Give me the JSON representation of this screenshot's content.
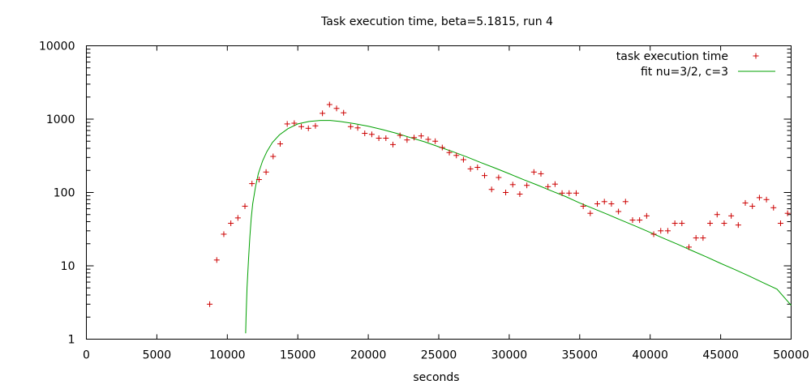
{
  "chart_data": {
    "type": "scatter",
    "title": "Task execution time, beta=5.1815, run 4",
    "xlabel": "seconds",
    "ylabel": "",
    "xlim": [
      0,
      50000
    ],
    "ylim": [
      1,
      10000
    ],
    "yscale": "log",
    "grid": false,
    "legend_position": "top-right",
    "x_ticks": [
      {
        "value": 0,
        "label": "0"
      },
      {
        "value": 5000,
        "label": "5000"
      },
      {
        "value": 10000,
        "label": "10000"
      },
      {
        "value": 15000,
        "label": "15000"
      },
      {
        "value": 20000,
        "label": "20000"
      },
      {
        "value": 25000,
        "label": "25000"
      },
      {
        "value": 30000,
        "label": "30000"
      },
      {
        "value": 35000,
        "label": "35000"
      },
      {
        "value": 40000,
        "label": "40000"
      },
      {
        "value": 45000,
        "label": "45000"
      },
      {
        "value": 50000,
        "label": "50000"
      }
    ],
    "y_ticks": [
      {
        "value": 1,
        "label": "1"
      },
      {
        "value": 10,
        "label": "10"
      },
      {
        "value": 100,
        "label": "100"
      },
      {
        "value": 1000,
        "label": "1000"
      },
      {
        "value": 10000,
        "label": "10000"
      }
    ],
    "series": [
      {
        "name": "task execution time",
        "kind": "points",
        "marker": "+",
        "color": "#cc0000",
        "x": [
          8750,
          9250,
          9750,
          10250,
          10750,
          11250,
          11750,
          12250,
          12750,
          13250,
          13750,
          14250,
          14750,
          15250,
          15750,
          16250,
          16750,
          17250,
          17750,
          18250,
          18750,
          19250,
          19750,
          20250,
          20750,
          21250,
          21750,
          22250,
          22750,
          23250,
          23750,
          24250,
          24750,
          25250,
          25750,
          26250,
          26750,
          27250,
          27750,
          28250,
          28750,
          29250,
          29750,
          30250,
          30750,
          31250,
          31750,
          32250,
          32750,
          33250,
          33750,
          34250,
          34750,
          35250,
          35750,
          36250,
          36750,
          37250,
          37750,
          38250,
          38750,
          39250,
          39750,
          40250,
          40750,
          41250,
          41750,
          42250,
          42750,
          43250,
          43750,
          44250,
          44750,
          45250,
          45750,
          46250,
          46750,
          47250,
          47750,
          48250,
          48750,
          49250,
          49750
        ],
        "y": [
          3,
          12,
          27,
          38,
          45,
          65,
          132,
          150,
          190,
          310,
          460,
          860,
          880,
          790,
          750,
          810,
          1200,
          1580,
          1400,
          1220,
          790,
          760,
          640,
          620,
          550,
          550,
          450,
          600,
          520,
          560,
          590,
          530,
          500,
          410,
          350,
          320,
          280,
          210,
          220,
          170,
          110,
          160,
          100,
          128,
          95,
          125,
          190,
          180,
          120,
          130,
          98,
          98,
          98,
          65,
          52,
          70,
          75,
          70,
          55,
          75,
          42,
          42,
          48,
          27,
          30,
          30,
          38,
          38,
          18,
          24,
          24,
          38,
          50,
          38,
          48,
          36,
          72,
          65,
          85,
          80,
          62,
          38,
          52
        ]
      },
      {
        "name": "fit nu=3/2, c=3",
        "kind": "line",
        "color": "#00a000",
        "x": [
          11300,
          11330,
          11400,
          11500,
          11600,
          11700,
          11800,
          12000,
          12200,
          12500,
          12800,
          13200,
          13700,
          14300,
          15000,
          15800,
          16600,
          17300,
          18000,
          19000,
          20000,
          21000,
          22000,
          23000,
          24000,
          25000,
          26000,
          27000,
          28000,
          29000,
          30000,
          31000,
          32000,
          33000,
          34000,
          35000,
          36000,
          37000,
          38000,
          39000,
          40000,
          41000,
          42000,
          43000,
          44000,
          45000,
          46000,
          47000,
          48000,
          49000,
          50000
        ],
        "y": [
          1.2,
          2,
          5,
          12,
          25,
          45,
          70,
          120,
          180,
          270,
          360,
          480,
          610,
          740,
          860,
          930,
          960,
          960,
          930,
          870,
          800,
          720,
          640,
          560,
          490,
          420,
          360,
          305,
          255,
          215,
          180,
          150,
          126,
          105,
          88,
          72,
          60,
          50,
          41.5,
          34.5,
          28.5,
          23.5,
          19.5,
          16,
          13.2,
          10.8,
          8.9,
          7.3,
          5.9,
          4.8,
          2.9
        ]
      }
    ]
  }
}
